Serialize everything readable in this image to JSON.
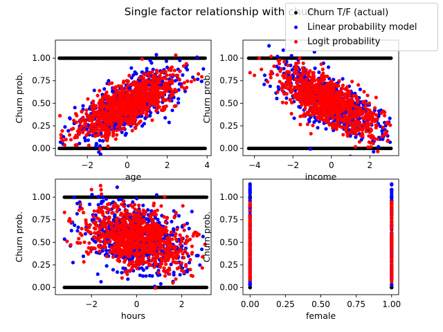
{
  "figure": {
    "title": "Single factor relationship with churn"
  },
  "legend": {
    "entries": [
      {
        "label": "Churn T/F (actual)",
        "color": "#000000"
      },
      {
        "label": "Linear probability model",
        "color": "#0000ff"
      },
      {
        "label": "Logit probability",
        "color": "#ff0000"
      }
    ]
  },
  "chart_data": [
    {
      "type": "scatter",
      "xlabel": "age",
      "ylabel": "Churn prob.",
      "xlim": [
        -3.6,
        4.2
      ],
      "ylim": [
        -0.08,
        1.2
      ],
      "xticks": [
        -2,
        0,
        2,
        4
      ],
      "yticks": [
        0.0,
        0.25,
        0.5,
        0.75,
        1.0
      ],
      "series": [
        {
          "name": "Churn T/F (actual)",
          "color": "#000000",
          "actual_x_range": [
            -3.4,
            3.9
          ],
          "y_values": [
            0,
            1
          ]
        },
        {
          "name": "Linear probability model",
          "color": "#0000ff",
          "trend": {
            "x": [
              -3.4,
              0,
              3.9
            ],
            "y": [
              0.12,
              0.48,
              0.92
            ]
          },
          "spread": 0.13
        },
        {
          "name": "Logit probability",
          "color": "#ff0000",
          "trend": {
            "x": [
              -3.4,
              0,
              3.9
            ],
            "y": [
              0.14,
              0.48,
              0.88
            ]
          },
          "spread": 0.12
        }
      ]
    },
    {
      "type": "scatter",
      "xlabel": "income",
      "ylabel": "Churn prob.",
      "xlim": [
        -4.6,
        3.5
      ],
      "ylim": [
        -0.08,
        1.2
      ],
      "xticks": [
        -4,
        -2,
        0,
        2
      ],
      "yticks": [
        0.0,
        0.25,
        0.5,
        0.75,
        1.0
      ],
      "series": [
        {
          "name": "Churn T/F (actual)",
          "color": "#000000",
          "actual_x_range": [
            -4.3,
            3.1
          ],
          "y_values": [
            0,
            1
          ]
        },
        {
          "name": "Linear probability model",
          "color": "#0000ff",
          "trend": {
            "x": [
              -4.3,
              0,
              3.1
            ],
            "y": [
              0.95,
              0.5,
              0.15
            ]
          },
          "spread": 0.14
        },
        {
          "name": "Logit probability",
          "color": "#ff0000",
          "trend": {
            "x": [
              -4.3,
              0,
              3.1
            ],
            "y": [
              0.9,
              0.5,
              0.18
            ]
          },
          "spread": 0.13
        }
      ]
    },
    {
      "type": "scatter",
      "xlabel": "hours",
      "ylabel": "Churn prob.",
      "xlim": [
        -3.6,
        3.3
      ],
      "ylim": [
        -0.08,
        1.2
      ],
      "xticks": [
        -2,
        0,
        2
      ],
      "yticks": [
        0.0,
        0.25,
        0.5,
        0.75,
        1.0
      ],
      "series": [
        {
          "name": "Churn T/F (actual)",
          "color": "#000000",
          "actual_x_range": [
            -3.2,
            3.1
          ],
          "y_values": [
            0,
            1
          ]
        },
        {
          "name": "Linear probability model",
          "color": "#0000ff",
          "trend": {
            "x": [
              -3.2,
              0,
              3.1
            ],
            "y": [
              0.72,
              0.55,
              0.35
            ]
          },
          "spread": 0.18
        },
        {
          "name": "Logit probability",
          "color": "#ff0000",
          "trend": {
            "x": [
              -3.2,
              0,
              3.1
            ],
            "y": [
              0.7,
              0.55,
              0.38
            ]
          },
          "spread": 0.16
        }
      ]
    },
    {
      "type": "scatter",
      "xlabel": "female",
      "ylabel": "Churn prob.",
      "xlim": [
        -0.05,
        1.05
      ],
      "ylim": [
        -0.08,
        1.2
      ],
      "xticks": [
        0.0,
        0.25,
        0.5,
        0.75,
        1.0
      ],
      "yticks": [
        0.0,
        0.25,
        0.5,
        0.75,
        1.0
      ],
      "series": [
        {
          "name": "Churn T/F (actual)",
          "color": "#000000",
          "actual_x_values": [
            0,
            1
          ],
          "y_values": [
            0,
            1
          ]
        },
        {
          "name": "Linear probability model",
          "color": "#0000ff",
          "x_values": [
            0,
            1
          ],
          "y_range": [
            0.0,
            1.15
          ]
        },
        {
          "name": "Logit probability",
          "color": "#ff0000",
          "x_values": [
            0,
            1
          ],
          "y_range": [
            0.05,
            0.95
          ]
        }
      ]
    }
  ]
}
